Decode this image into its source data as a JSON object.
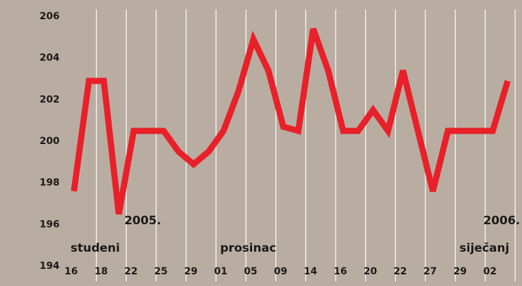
{
  "chart_data": {
    "type": "line",
    "categories": [
      "16",
      null,
      "18",
      null,
      "22",
      null,
      "25",
      null,
      "29",
      null,
      "01",
      null,
      "05",
      null,
      "09",
      null,
      "14",
      null,
      "16",
      null,
      "20",
      null,
      "22",
      null,
      "27",
      null,
      "29",
      null,
      "02",
      null
    ],
    "series": [
      {
        "color": "#e8202a",
        "values": [
          197.6,
          202.9,
          202.9,
          196.5,
          200.5,
          200.5,
          200.5,
          199.5,
          198.9,
          199.5,
          200.5,
          202.4,
          204.9,
          203.4,
          200.7,
          200.5,
          205.4,
          203.4,
          200.5,
          200.5,
          201.5,
          200.5,
          203.4,
          200.5,
          197.6,
          200.5,
          200.5,
          200.5,
          200.5,
          202.9
        ]
      }
    ],
    "ylim": [
      194,
      206
    ],
    "yticks": [
      194,
      196,
      198,
      200,
      202,
      204,
      206
    ],
    "annotations": [
      {
        "text": "2005.",
        "category": 4
      },
      {
        "text": "2006.",
        "category": 28
      },
      {
        "text": "studeni",
        "category": 0
      },
      {
        "text": "prosinac",
        "category": 10
      },
      {
        "text": "siječanj",
        "category": 26
      }
    ]
  }
}
